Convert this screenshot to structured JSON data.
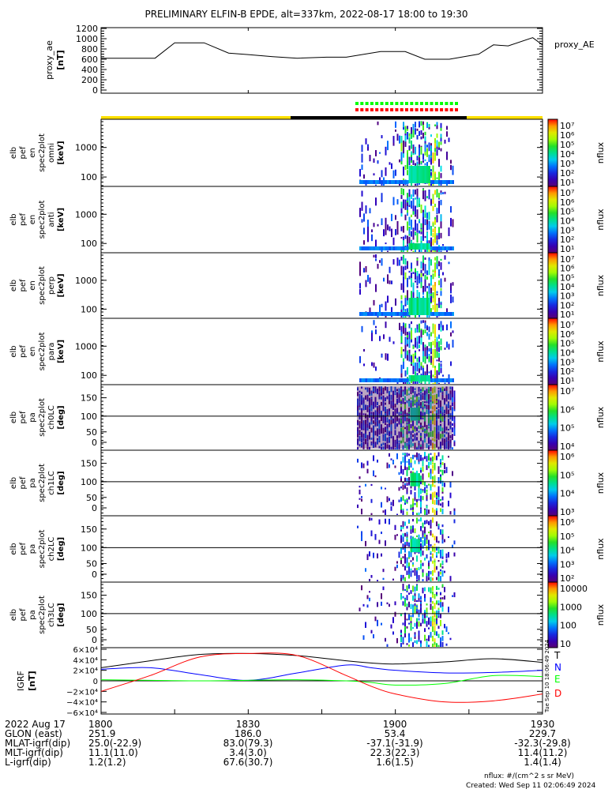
{
  "title": "PRELIMINARY ELFIN-B EPDE, alt=337km, 2022-08-17 18:00 to 19:30",
  "chart_data": [
    {
      "type": "line",
      "name": "proxy_AE",
      "ylabel": "proxy_ae",
      "yunits": "[nT]",
      "legend": "proxy_AE",
      "ylim": [
        0,
        1200
      ],
      "yticks": [
        "1200",
        "1000",
        "800",
        "600",
        "400",
        "200",
        "0"
      ],
      "x_minutes": [
        0,
        11,
        15,
        21,
        26,
        30,
        35,
        40,
        46,
        50,
        57,
        62,
        66,
        71,
        77,
        80,
        83,
        88,
        90
      ],
      "values": [
        620,
        620,
        920,
        920,
        720,
        690,
        650,
        620,
        640,
        640,
        750,
        750,
        600,
        600,
        700,
        880,
        860,
        1020,
        880
      ]
    },
    {
      "type": "heatmap",
      "panels": [
        {
          "label": [
            "elb",
            "pef",
            "en",
            "spec2plot",
            "omni",
            "[keV]"
          ],
          "yticks": [
            "1000",
            "100"
          ],
          "cbar": [
            "10⁷",
            "10⁶",
            "10⁵",
            "10⁴",
            "10³",
            "10²",
            "10¹"
          ],
          "cbar_label": "nflux"
        },
        {
          "label": [
            "elb",
            "pef",
            "en",
            "spec2plot",
            "anti",
            "[keV]"
          ],
          "yticks": [
            "1000",
            "100"
          ],
          "cbar": [
            "10⁷",
            "10⁶",
            "10⁵",
            "10⁴",
            "10³",
            "10²",
            "10¹"
          ],
          "cbar_label": "nflux"
        },
        {
          "label": [
            "elb",
            "pef",
            "en",
            "spec2plot",
            "perp",
            "[keV]"
          ],
          "yticks": [
            "1000",
            "100"
          ],
          "cbar": [
            "10⁷",
            "10⁶",
            "10⁵",
            "10⁴",
            "10³",
            "10²",
            "10¹"
          ],
          "cbar_label": "nflux"
        },
        {
          "label": [
            "elb",
            "pef",
            "en",
            "spec2plot",
            "para",
            "[keV]"
          ],
          "yticks": [
            "1000",
            "100"
          ],
          "cbar": [
            "10⁷",
            "10⁶",
            "10⁵",
            "10⁴",
            "10³",
            "10²",
            "10¹"
          ],
          "cbar_label": "nflux"
        },
        {
          "label": [
            "elb",
            "pef",
            "pa",
            "spec2plot",
            "ch0LC",
            "[deg]"
          ],
          "yticks": [
            "150",
            "100",
            "50",
            "0"
          ],
          "cbar": [
            "10⁷",
            "10⁶",
            "10⁵",
            "10⁴"
          ],
          "cbar_label": "nflux"
        },
        {
          "label": [
            "elb",
            "pef",
            "pa",
            "spec2plot",
            "ch1LC",
            "[deg]"
          ],
          "yticks": [
            "150",
            "100",
            "50",
            "0"
          ],
          "cbar": [
            "10⁶",
            "10⁵",
            "10⁴",
            "10³"
          ],
          "cbar_label": "nflux"
        },
        {
          "label": [
            "elb",
            "pef",
            "pa",
            "spec2plot",
            "ch2LC",
            "[deg]"
          ],
          "yticks": [
            "150",
            "100",
            "50",
            "0"
          ],
          "cbar": [
            "10⁶",
            "10⁵",
            "10⁴",
            "10³",
            "10²"
          ],
          "cbar_label": "nflux"
        },
        {
          "label": [
            "elb",
            "pef",
            "pa",
            "spec2plot",
            "ch3LC",
            "[deg]"
          ],
          "yticks": [
            "150",
            "100",
            "50",
            "0"
          ],
          "cbar": [
            "10000",
            "1000",
            "100",
            "10"
          ],
          "cbar_label": "nflux"
        }
      ]
    },
    {
      "type": "line",
      "name": "IGRF",
      "ylabel": "IGRF",
      "yunits": "[nT]",
      "ylim": [
        -60000,
        60000
      ],
      "yticks": [
        "6×10⁴",
        "4×10⁴",
        "2×10⁴",
        "0",
        "−2×10⁴",
        "−4×10⁴",
        "−6×10⁴"
      ],
      "x_minutes": [
        0,
        10,
        20,
        30,
        40,
        50,
        55,
        60,
        70,
        80,
        90
      ],
      "series": [
        {
          "name": "T",
          "color": "#000000",
          "values": [
            25000,
            38000,
            50000,
            52000,
            48000,
            38000,
            34000,
            32000,
            36000,
            42000,
            35000
          ]
        },
        {
          "name": "N",
          "color": "#0000ff",
          "values": [
            22000,
            25000,
            12000,
            1000,
            15000,
            30000,
            25000,
            20000,
            15000,
            16000,
            20000
          ]
        },
        {
          "name": "E",
          "color": "#00ff00",
          "values": [
            2000,
            1000,
            0,
            1000,
            2000,
            0,
            -3000,
            -8000,
            -5000,
            10000,
            8000
          ]
        },
        {
          "name": "D",
          "color": "#ff0000",
          "values": [
            -20000,
            10000,
            45000,
            52000,
            48000,
            10000,
            -10000,
            -25000,
            -40000,
            -38000,
            -25000
          ]
        }
      ]
    }
  ],
  "xaxis": {
    "rows": [
      [
        "2022 Aug 17",
        "1800",
        "1830",
        "1900",
        "1930"
      ],
      [
        "GLON (east)",
        "251.9",
        "186.0",
        "53.4",
        "229.7"
      ],
      [
        "MLAT-igrf(dip)",
        "25.0(-22.9)",
        "83.0(79.3)",
        "-37.1(-31.9)",
        "-32.3(-29.8)"
      ],
      [
        "MLT-igrf(dip)",
        "11.1(11.0)",
        "3.4(3.0)",
        "22.3(22.3)",
        "11.4(11.2)"
      ],
      [
        "L-igrf(dip)",
        "1.2(1.2)",
        "67.6(30.7)",
        "1.6(1.5)",
        "1.4(1.4)"
      ]
    ]
  },
  "footer": {
    "units": "nflux: #/(cm^2 s sr MeV)",
    "created": "Created: Wed Sep 11 02:06:49 2024",
    "stamp": "Tue Sep 10 18:06:49 2024"
  },
  "colors": {
    "yellow": "#ffe000",
    "black": "#000000",
    "green_marks": "#00ff00",
    "red_marks": "#ff0000"
  }
}
